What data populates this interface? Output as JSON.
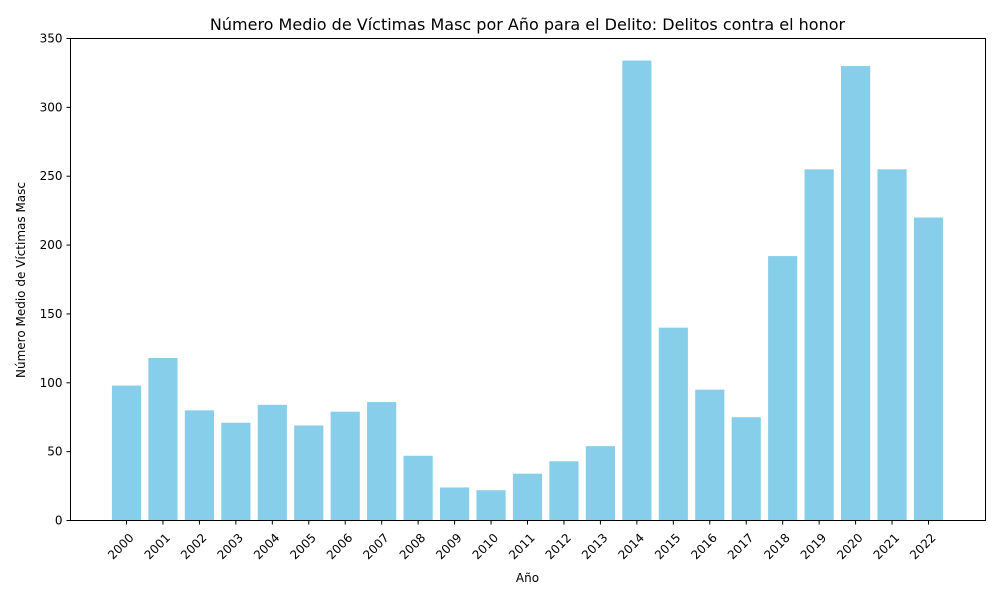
{
  "chart_data": {
    "type": "bar",
    "title": "Número Medio de Víctimas Masc por Año para el Delito: Delitos contra el honor",
    "xlabel": "Año",
    "ylabel": "Número Medio de Víctimas Masc",
    "categories": [
      "2000",
      "2001",
      "2002",
      "2003",
      "2004",
      "2005",
      "2006",
      "2007",
      "2008",
      "2009",
      "2010",
      "2011",
      "2012",
      "2013",
      "2014",
      "2015",
      "2016",
      "2017",
      "2018",
      "2019",
      "2020",
      "2021",
      "2022"
    ],
    "values": [
      98,
      118,
      80,
      71,
      84,
      69,
      79,
      86,
      47,
      24,
      22,
      34,
      43,
      54,
      334,
      140,
      95,
      75,
      192,
      255,
      330,
      255,
      220
    ],
    "ylim": [
      0,
      350
    ],
    "yticks": [
      0,
      50,
      100,
      150,
      200,
      250,
      300,
      350
    ],
    "grid": false,
    "legend": false,
    "colors": {
      "bar": "#87CEEB",
      "axis": "#000000",
      "background": "#ffffff"
    }
  }
}
